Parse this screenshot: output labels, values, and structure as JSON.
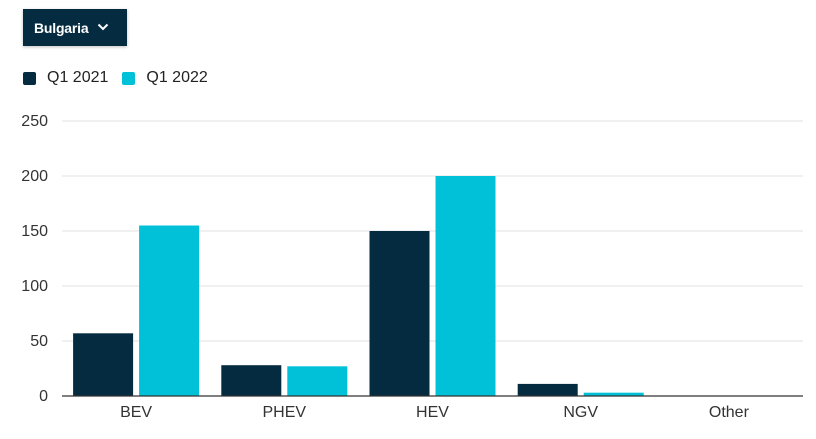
{
  "filter": {
    "selected": "Bulgaria"
  },
  "legend": [
    {
      "label": "Q1 2021",
      "color": "#042b40"
    },
    {
      "label": "Q1 2022",
      "color": "#00c1d8"
    }
  ],
  "chart_data": {
    "type": "bar",
    "categories": [
      "BEV",
      "PHEV",
      "HEV",
      "NGV",
      "Other"
    ],
    "series": [
      {
        "name": "Q1 2021",
        "color": "#042b40",
        "values": [
          57,
          28,
          150,
          11,
          0
        ]
      },
      {
        "name": "Q1 2022",
        "color": "#00c1d8",
        "values": [
          155,
          27,
          200,
          3,
          0
        ]
      }
    ],
    "ylim": [
      0,
      250
    ],
    "yticks": [
      0,
      50,
      100,
      150,
      200,
      250
    ],
    "grid": true,
    "legend_position": "top-left",
    "title": "",
    "xlabel": "",
    "ylabel": ""
  }
}
